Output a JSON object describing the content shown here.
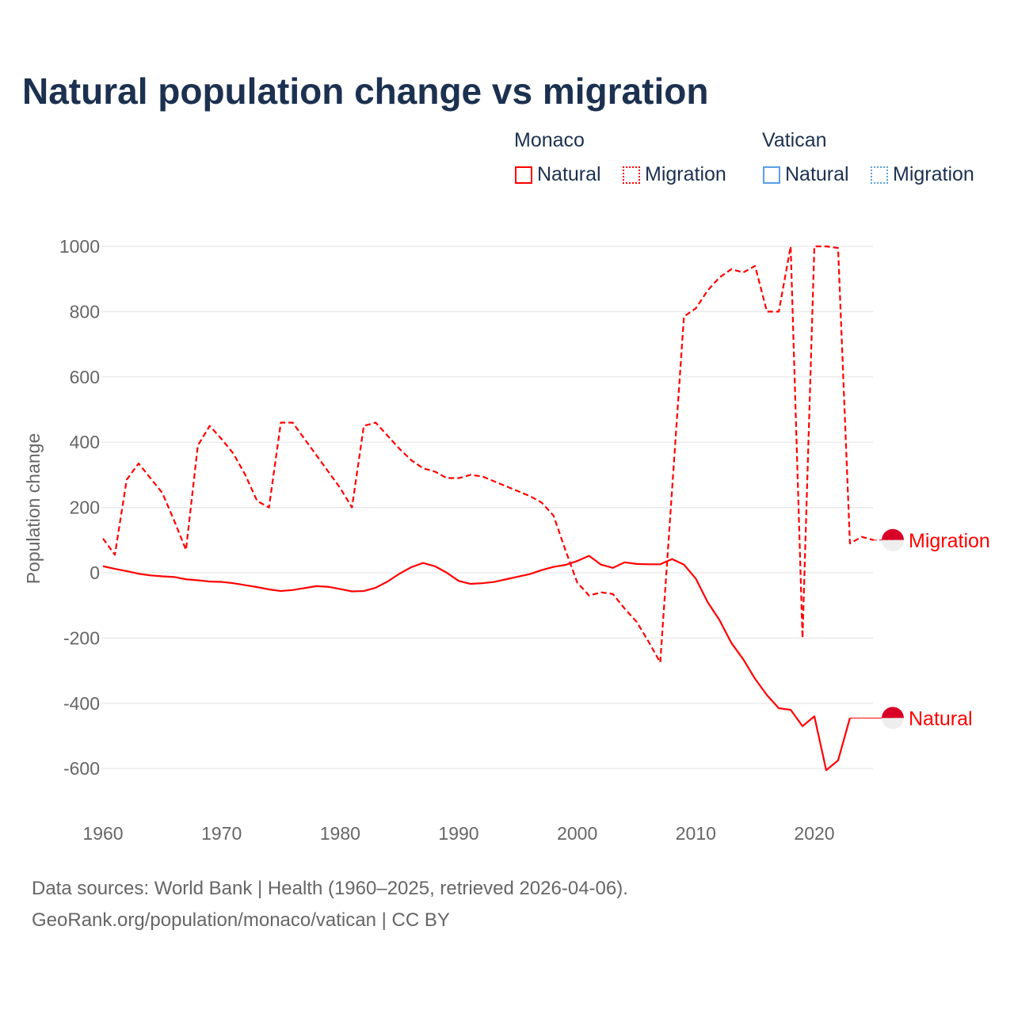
{
  "title": "Natural population change vs migration",
  "legend": {
    "groups": [
      {
        "name": "Monaco",
        "color": "#ff0000",
        "items": [
          "Natural",
          "Migration"
        ]
      },
      {
        "name": "Vatican",
        "color": "#5aa0e8",
        "items": [
          "Natural",
          "Migration"
        ]
      }
    ]
  },
  "footer": {
    "line1": "Data sources: World Bank | Health (1960–2025, retrieved 2026-04-06).",
    "line2": "GeoRank.org/population/monaco/vatican | CC BY"
  },
  "chart_data": {
    "type": "line",
    "title": "Natural population change vs migration",
    "xlabel": "",
    "ylabel": "Population change",
    "xlim": [
      1960,
      2025
    ],
    "ylim": [
      -700,
      1000
    ],
    "xticks": [
      1960,
      1970,
      1980,
      1990,
      2000,
      2010,
      2020
    ],
    "yticks": [
      -600,
      -400,
      -200,
      0,
      200,
      400,
      600,
      800,
      1000
    ],
    "grid": true,
    "legend_position": "top-right",
    "end_labels": [
      "Migration",
      "Natural"
    ],
    "series": [
      {
        "name": "Monaco Migration",
        "label": "Migration",
        "color": "#ff0000",
        "dash": "dashed",
        "x": [
          1960,
          1961,
          1962,
          1963,
          1964,
          1965,
          1966,
          1967,
          1968,
          1969,
          1970,
          1971,
          1972,
          1973,
          1974,
          1975,
          1976,
          1977,
          1978,
          1979,
          1980,
          1981,
          1982,
          1983,
          1984,
          1985,
          1986,
          1987,
          1988,
          1989,
          1990,
          1991,
          1992,
          1993,
          1994,
          1995,
          1996,
          1997,
          1998,
          1999,
          2000,
          2001,
          2002,
          2003,
          2004,
          2005,
          2006,
          2007,
          2008,
          2009,
          2010,
          2011,
          2012,
          2013,
          2014,
          2015,
          2016,
          2017,
          2018,
          2019,
          2020,
          2021,
          2022,
          2023,
          2024,
          2025
        ],
        "values": [
          105,
          55,
          285,
          335,
          290,
          245,
          160,
          70,
          390,
          450,
          410,
          365,
          300,
          220,
          200,
          460,
          460,
          410,
          360,
          310,
          260,
          200,
          450,
          460,
          420,
          380,
          345,
          320,
          310,
          290,
          290,
          300,
          295,
          280,
          265,
          250,
          235,
          215,
          175,
          70,
          -30,
          -70,
          -60,
          -65,
          -110,
          -150,
          -210,
          -275,
          255,
          785,
          810,
          865,
          905,
          930,
          920,
          940,
          800,
          800,
          1000,
          -200,
          1000,
          1000,
          995,
          90,
          110,
          100
        ]
      },
      {
        "name": "Monaco Natural",
        "label": "Natural",
        "color": "#ff0000",
        "dash": "solid",
        "x": [
          1960,
          1961,
          1962,
          1963,
          1964,
          1965,
          1966,
          1967,
          1968,
          1969,
          1970,
          1971,
          1972,
          1973,
          1974,
          1975,
          1976,
          1977,
          1978,
          1979,
          1980,
          1981,
          1982,
          1983,
          1984,
          1985,
          1986,
          1987,
          1988,
          1989,
          1990,
          1991,
          1992,
          1993,
          1994,
          1995,
          1996,
          1997,
          1998,
          1999,
          2000,
          2001,
          2002,
          2003,
          2004,
          2005,
          2006,
          2007,
          2008,
          2009,
          2010,
          2011,
          2012,
          2013,
          2014,
          2015,
          2016,
          2017,
          2018,
          2019,
          2020,
          2021,
          2022,
          2023
        ],
        "values": [
          20,
          12,
          5,
          -3,
          -8,
          -11,
          -13,
          -20,
          -23,
          -27,
          -28,
          -32,
          -38,
          -44,
          -51,
          -56,
          -53,
          -47,
          -41,
          -43,
          -50,
          -57,
          -56,
          -46,
          -27,
          -3,
          17,
          30,
          20,
          0,
          -25,
          -34,
          -32,
          -28,
          -20,
          -12,
          -4,
          8,
          18,
          24,
          36,
          52,
          25,
          15,
          32,
          27,
          26,
          26,
          42,
          25,
          -18,
          -90,
          -145,
          -215,
          -265,
          -325,
          -375,
          -415,
          -420,
          -470,
          -440,
          -605,
          -575,
          -445
        ],
        "projection_to": 2025
      }
    ]
  }
}
